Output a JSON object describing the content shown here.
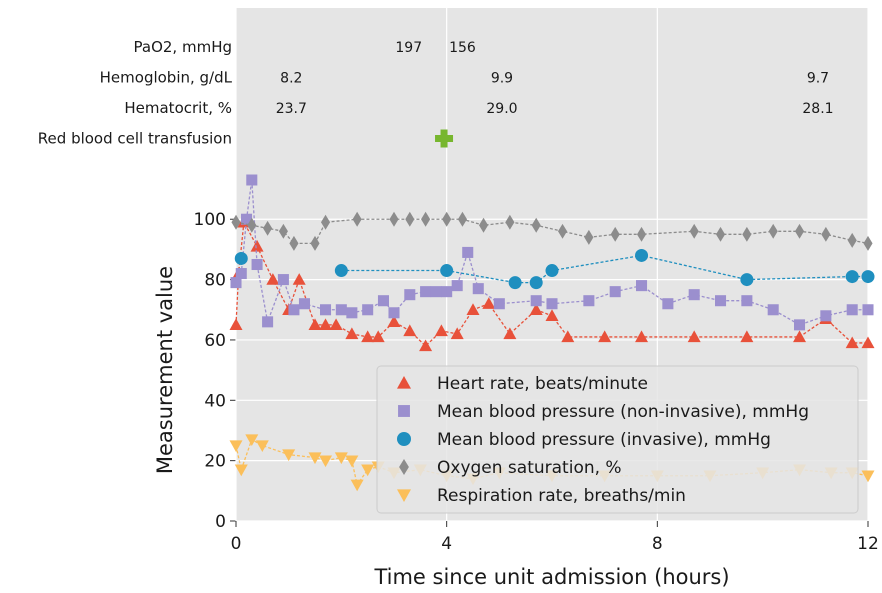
{
  "chart_data": {
    "type": "line",
    "xlabel": "Time since unit admission (hours)",
    "ylabel": "Measurement value",
    "xlim": [
      0,
      12
    ],
    "ylim": [
      0,
      170
    ],
    "xticks": [
      0,
      4,
      8,
      12
    ],
    "yticks": [
      0,
      20,
      40,
      60,
      80,
      100
    ],
    "grid": true,
    "legend": "lower right",
    "annotations": [
      {
        "label": "PaO2, mmHg",
        "points": [
          {
            "x": 3.28,
            "text": "197"
          },
          {
            "x": 4.3,
            "text": "156"
          }
        ]
      },
      {
        "label": "Hemoglobin, g/dL",
        "points": [
          {
            "x": 1.05,
            "text": "8.2"
          },
          {
            "x": 5.05,
            "text": "9.9"
          },
          {
            "x": 11.05,
            "text": "9.7"
          }
        ]
      },
      {
        "label": "Hematocrit, %",
        "points": [
          {
            "x": 1.05,
            "text": "23.7"
          },
          {
            "x": 5.05,
            "text": "29.0"
          },
          {
            "x": 11.05,
            "text": "28.1"
          }
        ]
      },
      {
        "label": "Red blood cell transfusion",
        "marker_x": [
          3.95
        ],
        "color": "#77b62e"
      }
    ],
    "series": [
      {
        "name": "Heart rate, beats/minute",
        "color": "#e8513a",
        "marker": "triangle-up",
        "x": [
          0,
          0.05,
          0.15,
          0.4,
          0.7,
          1.0,
          1.2,
          1.5,
          1.7,
          1.9,
          2.2,
          2.5,
          2.7,
          3.0,
          3.3,
          3.6,
          3.9,
          4.2,
          4.5,
          4.8,
          5.2,
          5.7,
          6.0,
          6.3,
          7.0,
          7.7,
          8.7,
          9.7,
          10.7,
          11.2,
          11.7,
          12
        ],
        "values": [
          65,
          82,
          99,
          91,
          80,
          70,
          80,
          65,
          65,
          65,
          62,
          61,
          61,
          66,
          63,
          58,
          63,
          62,
          70,
          72,
          62,
          70,
          68,
          61,
          61,
          61,
          61,
          61,
          61,
          67,
          59,
          59
        ]
      },
      {
        "name": "Mean blood pressure (non-invasive), mmHg",
        "color": "#9b8fce",
        "marker": "square",
        "x": [
          0,
          0.1,
          0.2,
          0.3,
          0.4,
          0.6,
          0.9,
          1.1,
          1.3,
          1.7,
          2.0,
          2.2,
          2.5,
          2.8,
          3.0,
          3.3,
          3.6,
          3.8,
          4.0,
          4.2,
          4.4,
          4.6,
          5.0,
          5.7,
          6.0,
          6.7,
          7.2,
          7.7,
          8.2,
          8.7,
          9.2,
          9.7,
          10.2,
          10.7,
          11.2,
          11.7,
          12
        ],
        "values": [
          79,
          82,
          100,
          113,
          85,
          66,
          80,
          70,
          72,
          70,
          70,
          69,
          70,
          73,
          69,
          75,
          76,
          76,
          76,
          78,
          89,
          77,
          72,
          73,
          72,
          73,
          76,
          78,
          72,
          75,
          73,
          73,
          70,
          65,
          68,
          70,
          70
        ]
      },
      {
        "name": "Mean blood pressure (invasive), mmHg",
        "color": "#1f8fbf",
        "marker": "circle",
        "x": [
          0.1,
          1.0,
          2.0,
          4.0,
          5.3,
          5.7,
          6.0,
          7.7,
          9.7,
          11.7,
          12
        ],
        "values": [
          87,
          null,
          83,
          83,
          79,
          79,
          83,
          88,
          80,
          81,
          81
        ]
      },
      {
        "name": "Oxygen saturation, %",
        "color": "#8c8c8c",
        "marker": "diamond",
        "x": [
          0,
          0.3,
          0.6,
          0.9,
          1.1,
          1.5,
          1.7,
          2.3,
          3.0,
          3.3,
          3.6,
          4.0,
          4.3,
          4.7,
          5.2,
          5.7,
          6.2,
          6.7,
          7.2,
          7.7,
          8.7,
          9.2,
          9.7,
          10.2,
          10.7,
          11.2,
          11.7,
          12
        ],
        "values": [
          99,
          98,
          97,
          96,
          92,
          92,
          99,
          100,
          100,
          100,
          100,
          100,
          100,
          98,
          99,
          98,
          96,
          94,
          95,
          95,
          96,
          95,
          95,
          96,
          96,
          95,
          93,
          92
        ]
      },
      {
        "name": "Respiration rate, breaths/min",
        "color": "#fbbf5a",
        "marker": "triangle-down",
        "x": [
          0,
          0.1,
          0.3,
          0.5,
          1.0,
          1.5,
          1.7,
          2.0,
          2.2,
          2.3,
          2.5,
          2.7,
          3.0,
          3.5,
          4.0,
          4.5,
          5,
          6,
          7,
          8,
          9,
          10,
          10.7,
          11.3,
          11.7,
          12
        ],
        "values": [
          25,
          17,
          27,
          25,
          22,
          21,
          20,
          21,
          20,
          12,
          17,
          18,
          16,
          17,
          15,
          14,
          16,
          15,
          15,
          15,
          15,
          16,
          17,
          16,
          16,
          15
        ]
      }
    ]
  }
}
